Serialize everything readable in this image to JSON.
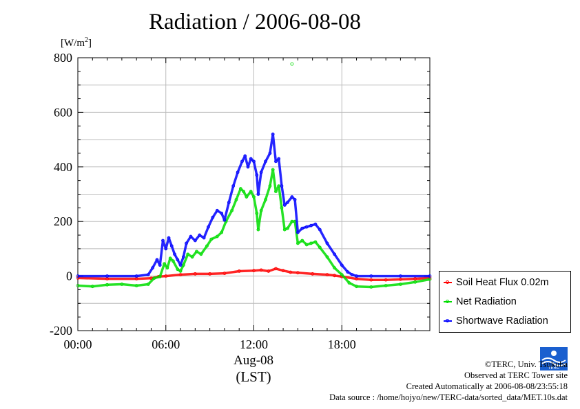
{
  "chart_data": {
    "type": "line",
    "title": "Radiation / 2006-08-08",
    "ylabel_text": "[W/m",
    "ylabel_sup": "2",
    "ylabel_close": "]",
    "ylim": [
      -200,
      800
    ],
    "yticks": [
      -200,
      0,
      200,
      400,
      600,
      800
    ],
    "xlim_hours": [
      0,
      24
    ],
    "xticks": [
      {
        "hour": 0,
        "label": "00:00"
      },
      {
        "hour": 6,
        "label": "06:00"
      },
      {
        "hour": 12,
        "label": "12:00"
      },
      {
        "hour": 18,
        "label": "18:00"
      }
    ],
    "xdate": "Aug-08",
    "xunit": "(LST)",
    "grid": true,
    "legend_position": "right",
    "series": [
      {
        "name": "Soil Heat Flux 0.02m",
        "color": "#ff0000",
        "points": [
          [
            0,
            -7
          ],
          [
            2,
            -10
          ],
          [
            4,
            -10
          ],
          [
            5,
            -8
          ],
          [
            5.5,
            -2
          ],
          [
            6,
            0
          ],
          [
            7,
            5
          ],
          [
            8,
            8
          ],
          [
            9,
            8
          ],
          [
            10,
            10
          ],
          [
            11,
            18
          ],
          [
            12,
            20
          ],
          [
            12.5,
            22
          ],
          [
            13,
            18
          ],
          [
            13.5,
            27
          ],
          [
            14,
            20
          ],
          [
            14.5,
            14
          ],
          [
            15,
            12
          ],
          [
            16,
            8
          ],
          [
            17,
            5
          ],
          [
            17.5,
            2
          ],
          [
            18,
            -2
          ],
          [
            19,
            -10
          ],
          [
            20,
            -14
          ],
          [
            21,
            -14
          ],
          [
            22,
            -12
          ],
          [
            23,
            -10
          ],
          [
            24,
            -7
          ]
        ]
      },
      {
        "name": "Net Radiation",
        "color": "#00dd00",
        "points": [
          [
            0,
            -35
          ],
          [
            1,
            -38
          ],
          [
            2,
            -32
          ],
          [
            3,
            -30
          ],
          [
            4,
            -35
          ],
          [
            4.8,
            -30
          ],
          [
            5.2,
            -8
          ],
          [
            5.6,
            -2
          ],
          [
            5.9,
            45
          ],
          [
            6.1,
            30
          ],
          [
            6.3,
            65
          ],
          [
            6.5,
            55
          ],
          [
            6.8,
            25
          ],
          [
            7,
            18
          ],
          [
            7.2,
            40
          ],
          [
            7.5,
            80
          ],
          [
            7.8,
            70
          ],
          [
            8.1,
            90
          ],
          [
            8.4,
            80
          ],
          [
            8.8,
            110
          ],
          [
            9.1,
            135
          ],
          [
            9.5,
            145
          ],
          [
            9.8,
            160
          ],
          [
            10.1,
            200
          ],
          [
            10.5,
            240
          ],
          [
            10.8,
            280
          ],
          [
            11.1,
            320
          ],
          [
            11.3,
            310
          ],
          [
            11.5,
            290
          ],
          [
            11.8,
            310
          ],
          [
            12,
            290
          ],
          [
            12.2,
            230
          ],
          [
            12.3,
            170
          ],
          [
            12.5,
            240
          ],
          [
            12.8,
            280
          ],
          [
            13.1,
            330
          ],
          [
            13.3,
            390
          ],
          [
            13.5,
            310
          ],
          [
            13.7,
            330
          ],
          [
            13.9,
            250
          ],
          [
            14.1,
            170
          ],
          [
            14.3,
            175
          ],
          [
            14.6,
            200
          ],
          [
            14.8,
            200
          ],
          [
            15,
            120
          ],
          [
            15.3,
            130
          ],
          [
            15.6,
            115
          ],
          [
            15.9,
            120
          ],
          [
            16.2,
            125
          ],
          [
            16.5,
            105
          ],
          [
            17,
            70
          ],
          [
            17.5,
            30
          ],
          [
            18,
            5
          ],
          [
            18.5,
            -25
          ],
          [
            19,
            -38
          ],
          [
            20,
            -40
          ],
          [
            21,
            -35
          ],
          [
            22,
            -30
          ],
          [
            23,
            -22
          ],
          [
            24,
            -12
          ]
        ]
      },
      {
        "name": "Shortwave Radiation",
        "color": "#0000ff",
        "points": [
          [
            0,
            0
          ],
          [
            2,
            0
          ],
          [
            4,
            0
          ],
          [
            4.8,
            5
          ],
          [
            5.1,
            30
          ],
          [
            5.4,
            60
          ],
          [
            5.6,
            40
          ],
          [
            5.8,
            130
          ],
          [
            6.0,
            100
          ],
          [
            6.2,
            140
          ],
          [
            6.4,
            110
          ],
          [
            6.6,
            80
          ],
          [
            6.8,
            60
          ],
          [
            7.0,
            40
          ],
          [
            7.2,
            70
          ],
          [
            7.4,
            120
          ],
          [
            7.7,
            145
          ],
          [
            8.0,
            130
          ],
          [
            8.3,
            150
          ],
          [
            8.6,
            140
          ],
          [
            8.9,
            180
          ],
          [
            9.2,
            215
          ],
          [
            9.5,
            240
          ],
          [
            9.8,
            230
          ],
          [
            10.0,
            205
          ],
          [
            10.3,
            270
          ],
          [
            10.6,
            330
          ],
          [
            10.9,
            380
          ],
          [
            11.2,
            420
          ],
          [
            11.4,
            440
          ],
          [
            11.6,
            400
          ],
          [
            11.8,
            430
          ],
          [
            12.0,
            420
          ],
          [
            12.2,
            370
          ],
          [
            12.3,
            300
          ],
          [
            12.5,
            380
          ],
          [
            12.8,
            420
          ],
          [
            13.1,
            450
          ],
          [
            13.3,
            520
          ],
          [
            13.5,
            420
          ],
          [
            13.7,
            430
          ],
          [
            13.9,
            330
          ],
          [
            14.1,
            260
          ],
          [
            14.3,
            270
          ],
          [
            14.6,
            290
          ],
          [
            14.8,
            280
          ],
          [
            15.0,
            160
          ],
          [
            15.3,
            175
          ],
          [
            15.6,
            180
          ],
          [
            15.9,
            185
          ],
          [
            16.2,
            190
          ],
          [
            16.5,
            170
          ],
          [
            17.0,
            120
          ],
          [
            17.5,
            80
          ],
          [
            18.0,
            40
          ],
          [
            18.4,
            15
          ],
          [
            18.7,
            5
          ],
          [
            19,
            0
          ],
          [
            20,
            0
          ],
          [
            22,
            0
          ],
          [
            24,
            0
          ]
        ]
      }
    ],
    "outliers": [
      {
        "series": "Net Radiation",
        "hour": 14.6,
        "value": 777
      }
    ]
  },
  "credits": {
    "line1": "©TERC, Univ. Tsukuba",
    "line2": "Observed at TERC Tower site",
    "line3": "Created Automatically at 2006-08-08/23:55:18",
    "line4": "Data source : /home/hojyo/new/TERC-data/sorted_data/MET.10s.dat"
  },
  "logo": {
    "text": "TERC",
    "color": "#1a5fcf"
  }
}
